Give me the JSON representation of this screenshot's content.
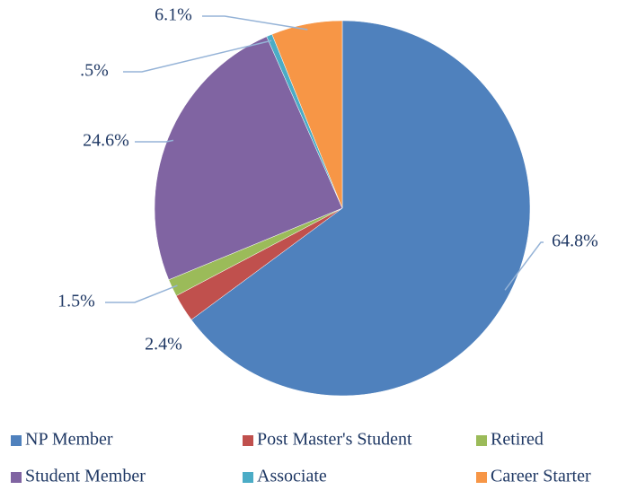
{
  "chart_data": {
    "type": "pie",
    "categories": [
      "NP Member",
      "Post Master's Student",
      "Retired",
      "Student Member",
      "Associate",
      "Career Starter"
    ],
    "values": [
      64.8,
      2.4,
      1.5,
      24.6,
      0.5,
      6.1
    ],
    "value_labels": [
      "64.8%",
      "2.4%",
      "1.5%",
      "24.6%",
      ".5%",
      "6.1%"
    ],
    "colors": [
      "#4f81bd",
      "#c0504d",
      "#9bbb59",
      "#8064a2",
      "#4bacc6",
      "#f79646"
    ],
    "legend": "bottom"
  }
}
